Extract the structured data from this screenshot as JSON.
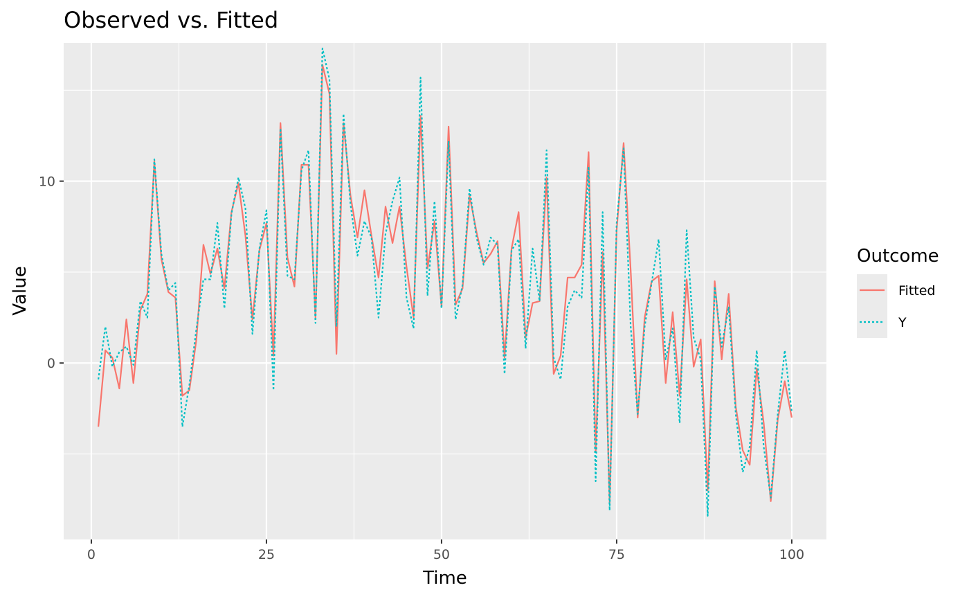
{
  "chart_data": {
    "type": "line",
    "title": "Observed vs. Fitted",
    "xlabel": "Time",
    "ylabel": "Value",
    "xlim": [
      -3.95,
      104.95
    ],
    "ylim": [
      -9.7,
      17.6
    ],
    "x_ticks": [
      0,
      25,
      50,
      75,
      100
    ],
    "x_tick_labels": [
      "0",
      "25",
      "50",
      "75",
      "100"
    ],
    "y_ticks": [
      0,
      10
    ],
    "y_tick_labels": [
      "0",
      "10"
    ],
    "x_minor_ticks": [
      12.5,
      37.5,
      62.5,
      87.5
    ],
    "y_minor_ticks": [
      -5,
      5,
      15
    ],
    "grid": true,
    "legend": {
      "title": "Outcome",
      "position": "right"
    },
    "x": [
      1,
      2,
      3,
      4,
      5,
      6,
      7,
      8,
      9,
      10,
      11,
      12,
      13,
      14,
      15,
      16,
      17,
      18,
      19,
      20,
      21,
      22,
      23,
      24,
      25,
      26,
      27,
      28,
      29,
      30,
      31,
      32,
      33,
      34,
      35,
      36,
      37,
      38,
      39,
      40,
      41,
      42,
      43,
      44,
      45,
      46,
      47,
      48,
      49,
      50,
      51,
      52,
      53,
      54,
      55,
      56,
      57,
      58,
      59,
      60,
      61,
      62,
      63,
      64,
      65,
      66,
      67,
      68,
      69,
      70,
      71,
      72,
      73,
      74,
      75,
      76,
      77,
      78,
      79,
      80,
      81,
      82,
      83,
      84,
      85,
      86,
      87,
      88,
      89,
      90,
      91,
      92,
      93,
      94,
      95,
      96,
      97,
      98,
      99,
      100
    ],
    "series": [
      {
        "name": "Fitted",
        "color": "#f8766d",
        "dash": "solid",
        "values": [
          -3.5,
          0.7,
          0.3,
          -1.4,
          2.4,
          -1.1,
          2.9,
          3.8,
          11.1,
          5.7,
          3.9,
          3.6,
          -1.8,
          -1.5,
          1.3,
          6.5,
          4.9,
          6.3,
          4.1,
          8.3,
          9.9,
          7.0,
          2.4,
          6.2,
          7.7,
          0.4,
          13.2,
          5.8,
          4.2,
          10.9,
          10.9,
          2.5,
          16.4,
          14.8,
          0.5,
          13.2,
          9.2,
          6.9,
          9.5,
          7.0,
          4.7,
          8.6,
          6.6,
          8.6,
          5.3,
          2.5,
          13.6,
          5.2,
          7.8,
          3.1,
          13.0,
          3.2,
          4.1,
          9.2,
          7.2,
          5.5,
          6.0,
          6.7,
          0.3,
          6.3,
          8.3,
          1.4,
          3.3,
          3.4,
          10.2,
          -0.6,
          0.4,
          4.7,
          4.7,
          5.4,
          11.6,
          -4.9,
          6.1,
          -7.7,
          7.3,
          12.1,
          5.1,
          -3.0,
          2.5,
          4.5,
          4.8,
          -1.1,
          2.8,
          -1.8,
          4.6,
          -0.2,
          1.3,
          -7.0,
          4.5,
          0.2,
          3.8,
          -2.4,
          -4.8,
          -5.6,
          -0.3,
          -3.3,
          -7.6,
          -3.1,
          -1.0,
          -3.0
        ]
      },
      {
        "name": "Y",
        "color": "#00bfc4",
        "dash": "dotted",
        "values": [
          -0.9,
          2.0,
          -0.2,
          0.6,
          0.9,
          -0.1,
          3.4,
          2.5,
          11.2,
          6.0,
          4.0,
          4.4,
          -3.5,
          -1.2,
          1.9,
          4.6,
          4.6,
          7.7,
          3.0,
          8.2,
          10.2,
          8.5,
          1.6,
          6.3,
          8.4,
          -1.5,
          12.9,
          4.8,
          4.6,
          10.6,
          11.7,
          2.2,
          17.3,
          15.6,
          2.0,
          13.7,
          8.7,
          5.9,
          7.8,
          6.9,
          2.5,
          7.1,
          8.9,
          10.2,
          3.6,
          1.9,
          15.7,
          3.7,
          8.9,
          3.0,
          12.2,
          2.4,
          4.3,
          9.6,
          6.9,
          5.4,
          6.9,
          6.5,
          -0.6,
          6.2,
          6.8,
          0.8,
          6.3,
          3.4,
          11.7,
          0.3,
          -0.9,
          3.1,
          4.0,
          3.6,
          10.8,
          -6.5,
          8.3,
          -8.1,
          7.7,
          11.8,
          2.0,
          -2.8,
          2.0,
          4.4,
          6.8,
          0.2,
          1.9,
          -3.3,
          7.3,
          1.4,
          0.2,
          -8.4,
          4.2,
          0.9,
          3.1,
          -2.8,
          -6.0,
          -4.6,
          0.7,
          -4.6,
          -7.4,
          -2.8,
          0.7,
          -2.7
        ]
      }
    ]
  }
}
